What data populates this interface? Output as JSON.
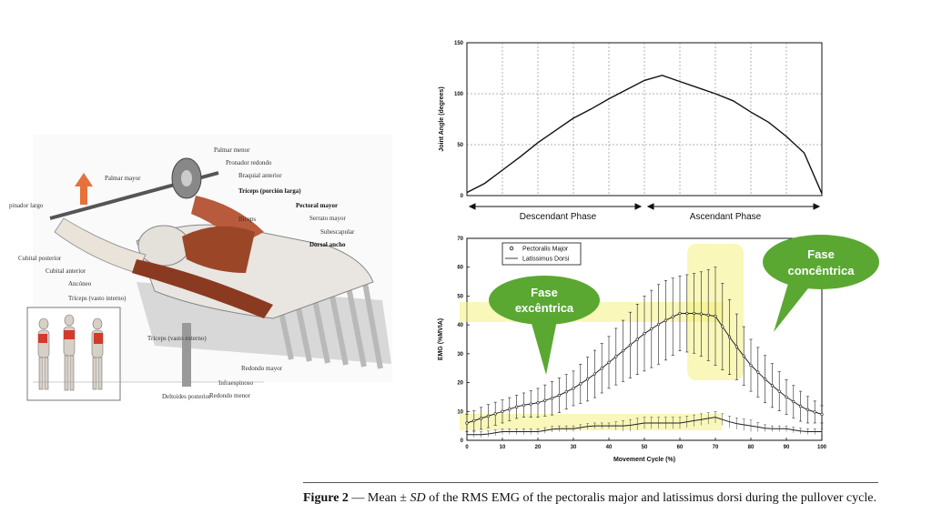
{
  "anatomy": {
    "labels_left": [
      "Palmar mayor",
      "pinador largo",
      "Cubital posterior",
      "Cubital anterior",
      "Ancóneo",
      "Tríceps (vasto interno)",
      "Tríceps (vasto externo)",
      "Deltoides posterior"
    ],
    "labels_right": [
      "Palmar menor",
      "Pronador redondo",
      "Braquial anterior",
      "Tríceps (porción larga)",
      "Pectoral mayor",
      "Bíceps",
      "Serrato mayor",
      "Subescapular",
      "Dorsal ancho",
      "Redondo mayor",
      "Infraespinoso",
      "Redondo menor"
    ],
    "colors": {
      "muscle": "#a0522d",
      "arrow": "#e8703a",
      "highlight": "#d23a2a"
    }
  },
  "bubbles": {
    "eccentric": "Fase excêntrica",
    "concentric": "Fase concêntrica",
    "color": "#5aa832"
  },
  "caption": {
    "prefix": "Figure 2",
    "text": " — Mean ± ",
    "sd": "SD",
    "rest": " of the RMS EMG of the pectoralis major and latissimus dorsi during the pullover cycle."
  },
  "chart_data": [
    {
      "type": "line",
      "ylabel": "Joint Angle (degrees)",
      "xlabel": "",
      "ylim": [
        0,
        150
      ],
      "xlim": [
        0,
        100
      ],
      "yticks": [
        0,
        50,
        100,
        150
      ],
      "grid": true,
      "x": [
        0,
        5,
        10,
        15,
        20,
        25,
        30,
        35,
        40,
        45,
        50,
        55,
        60,
        65,
        70,
        75,
        80,
        85,
        90,
        95,
        100
      ],
      "series": [
        {
          "values": [
            3,
            12,
            25,
            38,
            52,
            64,
            76,
            85,
            95,
            104,
            113,
            118,
            112,
            106,
            100,
            93,
            82,
            72,
            58,
            42,
            2
          ]
        }
      ],
      "phases": {
        "left": "Descendant Phase",
        "right": "Ascendant Phase"
      }
    },
    {
      "type": "line",
      "ylabel": "EMG (%MVIA)",
      "xlabel": "Movement Cycle (%)",
      "ylim": [
        0,
        70
      ],
      "xlim": [
        0,
        100
      ],
      "yticks": [
        0,
        10,
        20,
        30,
        40,
        50,
        60,
        70
      ],
      "xticks": [
        0,
        10,
        20,
        30,
        40,
        50,
        60,
        70,
        80,
        90,
        100
      ],
      "legend": "top-left",
      "x": [
        0,
        5,
        10,
        15,
        20,
        25,
        30,
        35,
        40,
        45,
        50,
        55,
        60,
        65,
        70,
        75,
        80,
        85,
        90,
        95,
        100
      ],
      "series": [
        {
          "name": "Pectoralis Major",
          "values": [
            6,
            8,
            10,
            12,
            13,
            15,
            18,
            22,
            27,
            32,
            37,
            41,
            44,
            44,
            43,
            34,
            26,
            20,
            15,
            11,
            9
          ],
          "sd": [
            3,
            4,
            4,
            4,
            5,
            6,
            6,
            8,
            9,
            11,
            13,
            14,
            13,
            14,
            17,
            12,
            9,
            8,
            6,
            5,
            3
          ]
        },
        {
          "name": "Latissimus Dorsi",
          "values": [
            2,
            2,
            3,
            3,
            3,
            4,
            4,
            5,
            5,
            5,
            6,
            6,
            6,
            7,
            8,
            6,
            5,
            4,
            4,
            3,
            3
          ],
          "sd": [
            1,
            1,
            1,
            1,
            1,
            1,
            1,
            1,
            1,
            2,
            2,
            2,
            2,
            2,
            2,
            2,
            2,
            1,
            1,
            1,
            1
          ]
        }
      ]
    }
  ]
}
